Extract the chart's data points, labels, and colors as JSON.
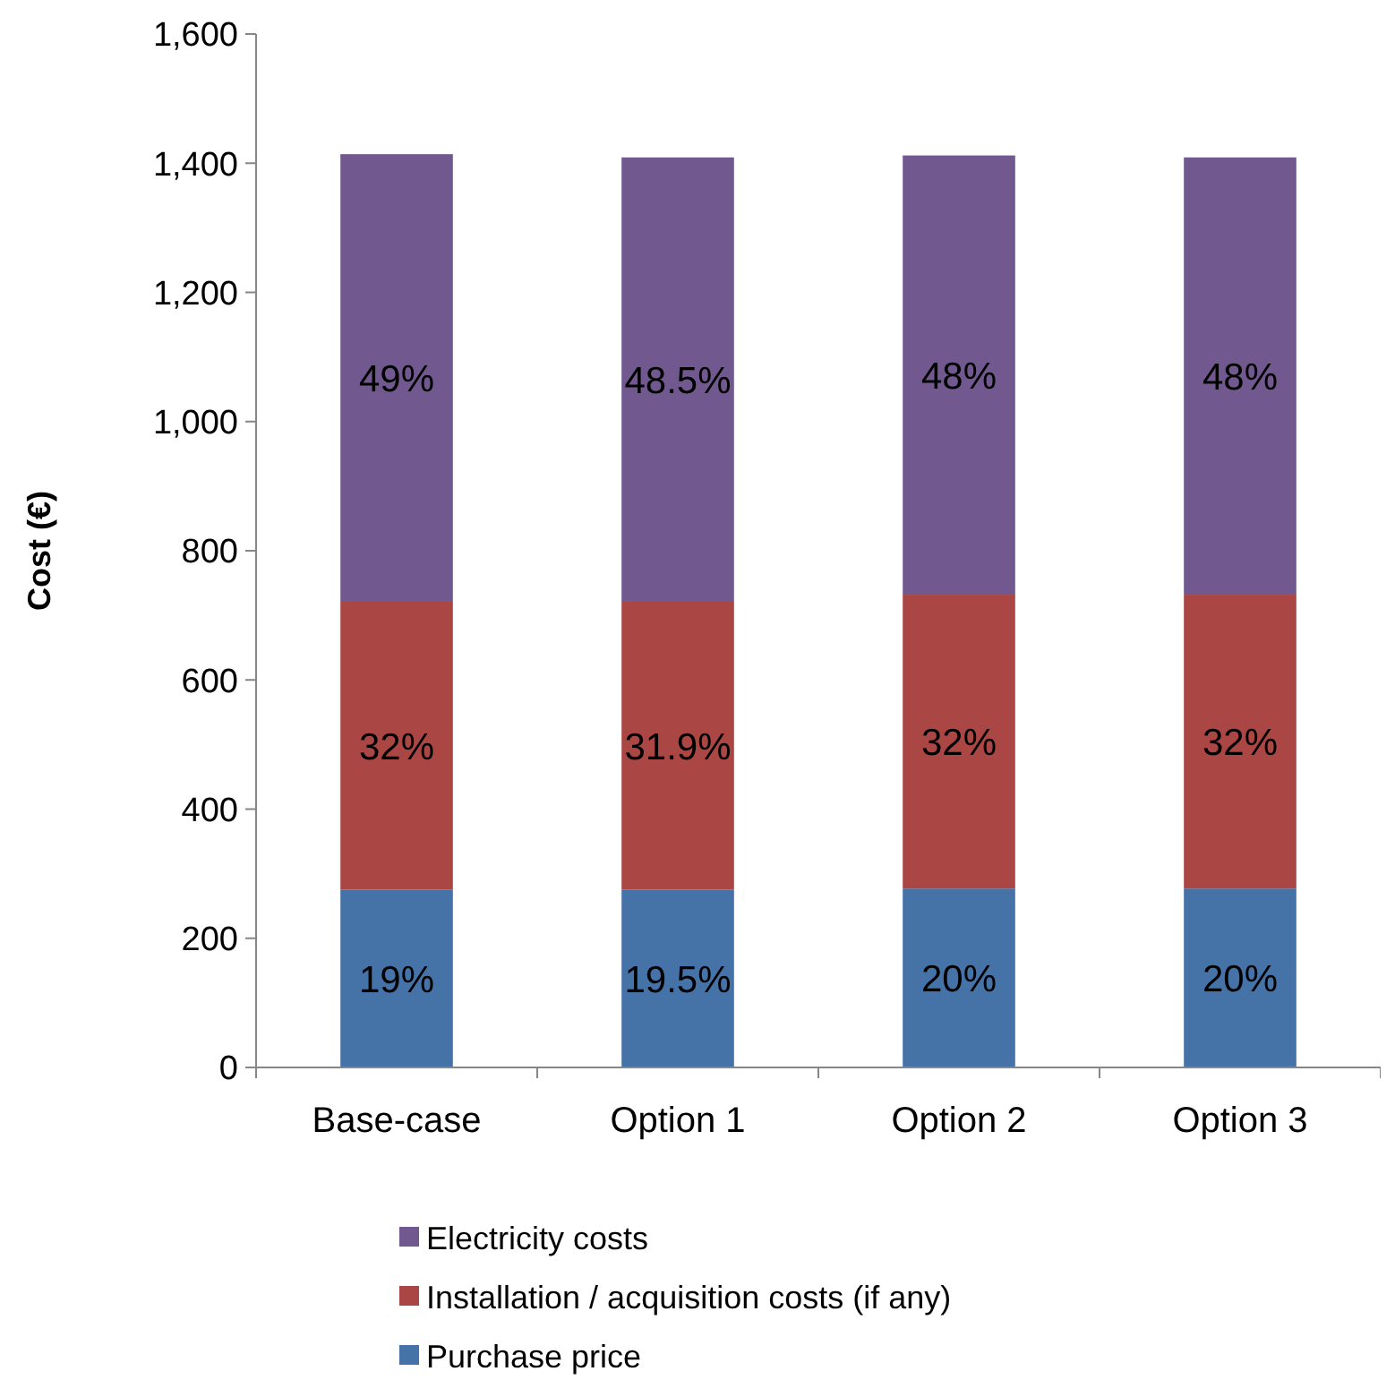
{
  "chart_data": {
    "type": "bar",
    "stacked": true,
    "ylabel": "Cost (€)",
    "categories": [
      "Base-case",
      "Option 1",
      "Option 2",
      "Option 3"
    ],
    "series": [
      {
        "name": "Purchase price",
        "color": "#4572a7",
        "values": [
          275,
          275,
          277,
          277
        ]
      },
      {
        "name": "Installation / acquisition  costs (if any)",
        "color": "#aa4643",
        "values": [
          446,
          446,
          455,
          455
        ]
      },
      {
        "name": "Electricity costs",
        "color": "#71588f",
        "values": [
          693,
          688,
          680,
          677
        ]
      }
    ],
    "annotations": [
      "19%",
      "32%",
      "49%",
      "19.5%",
      "31.9%",
      "48.5%",
      "20%",
      "32%",
      "48%",
      "20%",
      "32%",
      "48%"
    ],
    "ylim": [
      0,
      1600
    ],
    "yticks": [
      {
        "value": 0,
        "label": "0"
      },
      {
        "value": 200,
        "label": "200"
      },
      {
        "value": 400,
        "label": "400"
      },
      {
        "value": 600,
        "label": "600"
      },
      {
        "value": 800,
        "label": "800"
      },
      {
        "value": 1000,
        "label": "1,000"
      },
      {
        "value": 1200,
        "label": "1,200"
      },
      {
        "value": 1400,
        "label": "1,400"
      },
      {
        "value": 1600,
        "label": "1,600"
      }
    ],
    "legend": "bottom"
  }
}
